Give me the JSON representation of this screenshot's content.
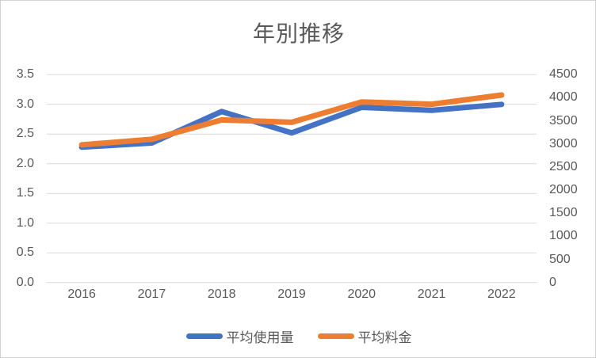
{
  "chart": {
    "colors": {
      "series1": "#4472C4",
      "series2": "#ED7D31",
      "grid": "#D9D9D9",
      "text": "#595959",
      "border": "#D2D2D2",
      "background": "#FFFFFF"
    }
  },
  "chart_data": {
    "type": "line",
    "title": "年別推移",
    "categories": [
      "2016",
      "2017",
      "2018",
      "2019",
      "2020",
      "2021",
      "2022"
    ],
    "series": [
      {
        "name": "平均使用量",
        "axis": "left",
        "color": "#4472C4",
        "values": [
          2.28,
          2.35,
          2.88,
          2.52,
          2.95,
          2.9,
          3.0
        ]
      },
      {
        "name": "平均料金",
        "axis": "right",
        "color": "#ED7D31",
        "values": [
          2980,
          3100,
          3520,
          3470,
          3910,
          3860,
          4060
        ]
      }
    ],
    "left_axis": {
      "min": 0,
      "max": 3.5,
      "step": 0.5,
      "ticks": [
        "3.5",
        "3.0",
        "2.5",
        "2.0",
        "1.5",
        "1.0",
        "0.5",
        "0.0"
      ]
    },
    "right_axis": {
      "min": 0,
      "max": 4500,
      "step": 500,
      "ticks": [
        "4500",
        "4000",
        "3500",
        "3000",
        "2500",
        "2000",
        "1500",
        "1000",
        "500",
        "0"
      ]
    },
    "grid": true,
    "legend_position": "bottom"
  }
}
